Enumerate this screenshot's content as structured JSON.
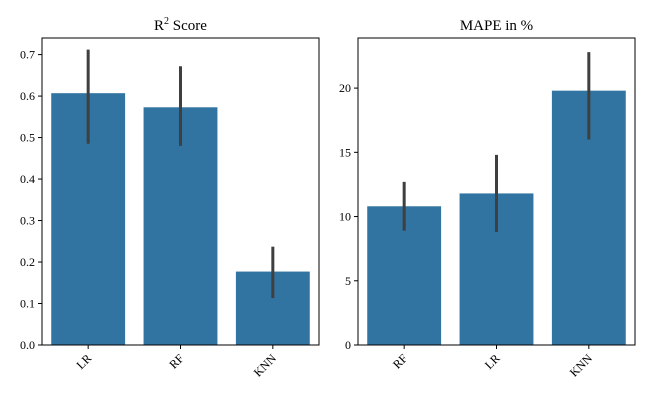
{
  "chart_data": [
    {
      "type": "bar",
      "title": "R",
      "title_superscript": "2",
      "title_suffix": " Score",
      "categories": [
        "LR",
        "RF",
        "KNN"
      ],
      "values": [
        0.607,
        0.573,
        0.177
      ],
      "error_low": [
        0.485,
        0.48,
        0.113
      ],
      "error_high": [
        0.712,
        0.672,
        0.237
      ],
      "ylim": [
        0,
        0.74
      ],
      "yticks": [
        0.0,
        0.1,
        0.2,
        0.3,
        0.4,
        0.5,
        0.6,
        0.7
      ],
      "ytick_labels": [
        "0.0",
        "0.1",
        "0.2",
        "0.3",
        "0.4",
        "0.5",
        "0.6",
        "0.7"
      ],
      "color": "#3274a1",
      "xlabel": "",
      "ylabel": "",
      "grid": false
    },
    {
      "type": "bar",
      "title": "MAPE in %",
      "categories": [
        "RF",
        "LR",
        "KNN"
      ],
      "values": [
        10.8,
        11.8,
        19.8
      ],
      "error_low": [
        8.9,
        8.8,
        16.0
      ],
      "error_high": [
        12.7,
        14.8,
        22.8
      ],
      "ylim": [
        0,
        23.9
      ],
      "yticks": [
        0,
        5,
        10,
        15,
        20
      ],
      "ytick_labels": [
        "0",
        "5",
        "10",
        "15",
        "20"
      ],
      "color": "#3274a1",
      "xlabel": "",
      "ylabel": "",
      "grid": false
    }
  ]
}
